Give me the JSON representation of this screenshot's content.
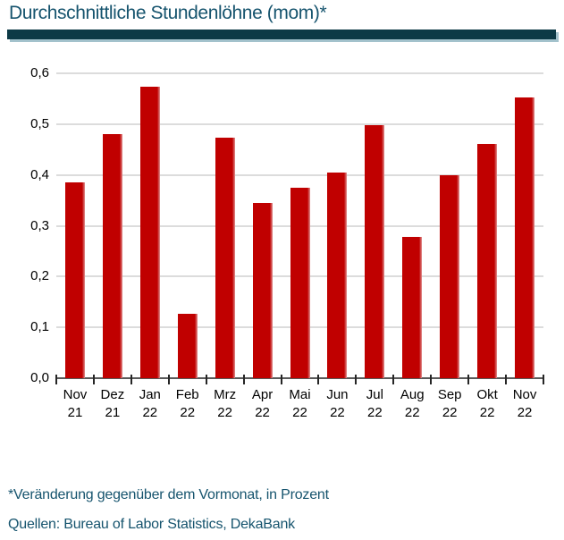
{
  "header": {
    "title": "Durchschnittliche Stundenlöhne (mom)*"
  },
  "footer": {
    "footnote": "*Veränderung gegenüber dem Vormonat, in Prozent",
    "sources": "Quellen: Bureau of Labor Statistics, DekaBank"
  },
  "colors": {
    "bar": "#c00000",
    "bar_edge": "#e09090",
    "accent_text": "#16546e",
    "divider": "#0d3a46",
    "divider_shadow": "#a3c2cc",
    "gridline": "#dcdcdc",
    "axis_line": "#595959",
    "tick": "#262626",
    "axis_label": "#000000"
  },
  "chart_data": {
    "type": "bar",
    "title": "Durchschnittliche Stundenlöhne (mom)*",
    "categories": [
      "Nov 21",
      "Dez 21",
      "Jan 22",
      "Feb 22",
      "Mrz 22",
      "Apr 22",
      "Mai 22",
      "Jun 22",
      "Jul 22",
      "Aug 22",
      "Sep 22",
      "Okt 22",
      "Nov 22"
    ],
    "values": [
      0.385,
      0.48,
      0.573,
      0.127,
      0.474,
      0.345,
      0.375,
      0.405,
      0.498,
      0.278,
      0.4,
      0.461,
      0.552
    ],
    "xlabel": "",
    "ylabel": "",
    "ylim": [
      0.0,
      0.6
    ],
    "ytick_step": 0.1,
    "ytick_labels": [
      "0,0",
      "0,1",
      "0,2",
      "0,3",
      "0,4",
      "0,5",
      "0,6"
    ],
    "grid": true,
    "legend": false,
    "decimal_separator": ","
  }
}
